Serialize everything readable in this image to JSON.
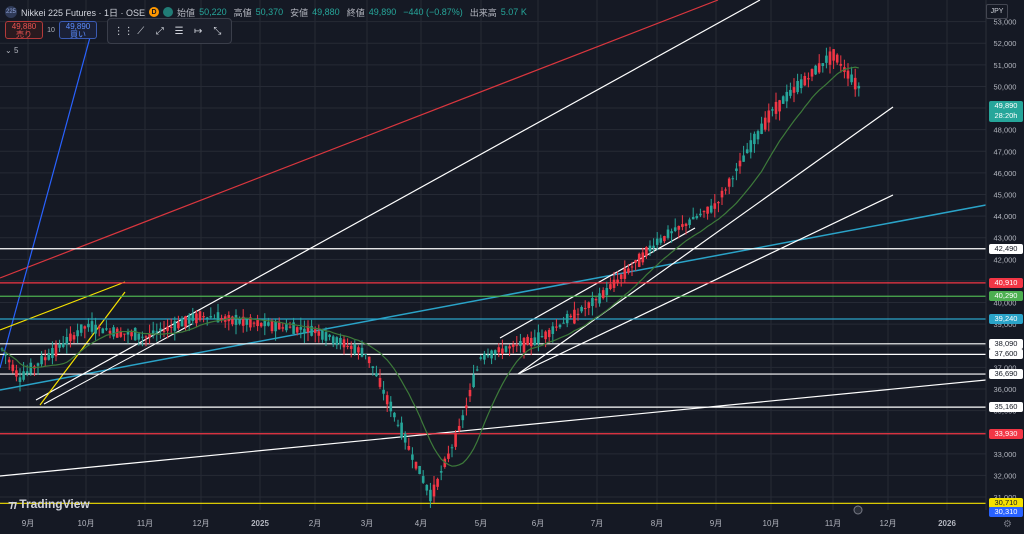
{
  "header": {
    "symbol_badge": "225",
    "title": "Nikkei 225 Futures · 1日 · OSE",
    "badge_letter": "D",
    "open_label": "始値",
    "open": "50,220",
    "high_label": "高値",
    "high": "50,370",
    "low_label": "安値",
    "low": "49,880",
    "close_label": "終値",
    "close": "49,890",
    "change": "−440 (−0.87%)",
    "volume_label": "出来高",
    "volume": "5.07 K"
  },
  "trade": {
    "sell_price": "49,880",
    "sell_label": "売り",
    "quantity": "10",
    "buy_price": "49,890",
    "buy_label": "買い"
  },
  "indicator_toggle": "5",
  "currency": "JPY",
  "brand": "TradingView",
  "last_price": {
    "price": "49,890",
    "countdown": "28:20h"
  },
  "colors": {
    "up": "#f23645",
    "down": "#26a69a",
    "ma": "#3d7a3a",
    "grid": "#262a35"
  },
  "chart_data": {
    "type": "candlestick",
    "y_range": [
      30400,
      54000
    ],
    "y_ticks": [
      "53,000",
      "52,000",
      "51,000",
      "50,000",
      "49,000",
      "48,000",
      "47,000",
      "46,000",
      "45,000",
      "44,000",
      "43,000",
      "42,000",
      "41,000",
      "40,000",
      "39,000",
      "38,000",
      "37,000",
      "36,000",
      "35,000",
      "34,000",
      "33,000",
      "32,000",
      "31,000"
    ],
    "x_labels": [
      "9月",
      "10月",
      "11月",
      "12月",
      "2025",
      "2月",
      "3月",
      "4月",
      "5月",
      "6月",
      "7月",
      "8月",
      "9月",
      "10月",
      "11月",
      "12月",
      "2026"
    ],
    "monthly_path": [
      {
        "m": "9月",
        "v": 38000
      },
      {
        "m": "9月",
        "v": 36500
      },
      {
        "m": "10月",
        "v": 38900
      },
      {
        "m": "11月",
        "v": 38400
      },
      {
        "m": "12月",
        "v": 39400
      },
      {
        "m": "2025",
        "v": 39000
      },
      {
        "m": "2月",
        "v": 38700
      },
      {
        "m": "3月",
        "v": 37600
      },
      {
        "m": "4月",
        "v": 31000
      },
      {
        "m": "4月",
        "v": 34200
      },
      {
        "m": "5月",
        "v": 37500
      },
      {
        "m": "6月",
        "v": 38300
      },
      {
        "m": "7月",
        "v": 40100
      },
      {
        "m": "8月",
        "v": 42800
      },
      {
        "m": "9月",
        "v": 44500
      },
      {
        "m": "10月",
        "v": 48800
      },
      {
        "m": "11月",
        "v": 51500
      },
      {
        "m": "11月",
        "v": 49890
      }
    ],
    "horizontal_levels": [
      {
        "price": 42490,
        "label": "42,490",
        "color": "#ffffff"
      },
      {
        "price": 40910,
        "label": "40,910",
        "color": "#f23645"
      },
      {
        "price": 40290,
        "label": "40,290",
        "color": "#4caf50"
      },
      {
        "price": 39240,
        "label": "39,240",
        "color": "#2aa3c8"
      },
      {
        "price": 38090,
        "label": "38,090",
        "color": "#ffffff"
      },
      {
        "price": 37600,
        "label": "37,600",
        "color": "#ffffff"
      },
      {
        "price": 36690,
        "label": "36,690",
        "color": "#ffffff"
      },
      {
        "price": 35160,
        "label": "35,160",
        "color": "#ffffff"
      },
      {
        "price": 33930,
        "label": "33,930",
        "color": "#f23645"
      },
      {
        "price": 30710,
        "label": "30,710",
        "color": "#f5e100"
      },
      {
        "price": 30310,
        "label": "30,310",
        "color": "#2962ff"
      }
    ]
  }
}
